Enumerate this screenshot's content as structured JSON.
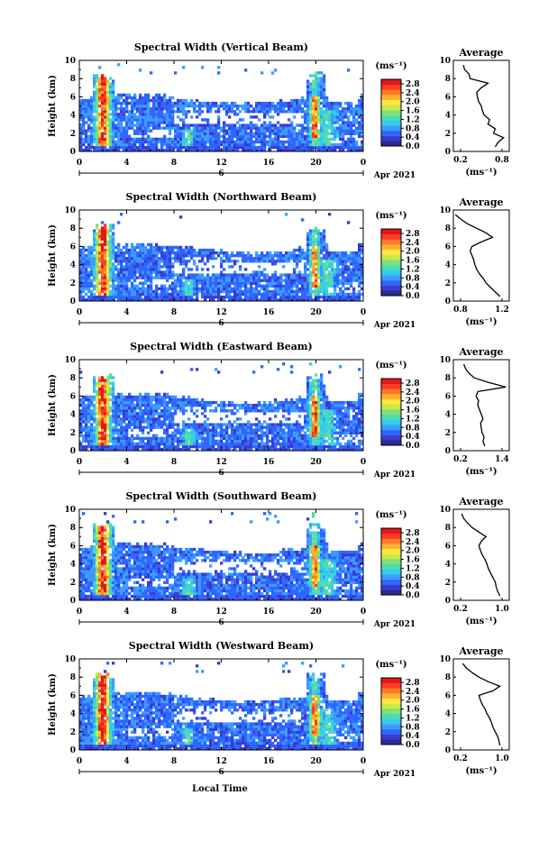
{
  "figure": {
    "xlabel_bottom": "Local Time",
    "date_label": "Apr 2021",
    "day_marker": "6"
  },
  "colorbar": {
    "unit_label": "(ms⁻¹)",
    "tick_labels": [
      "2.8",
      "2.4",
      "2.0",
      "1.6",
      "1.2",
      "0.8",
      "0.4",
      "0.0"
    ],
    "colors": [
      "#2b2b8c",
      "#3b3bd0",
      "#2f66ff",
      "#3d9bff",
      "#33ccee",
      "#4cdcb4",
      "#7fe07a",
      "#c8e848",
      "#ffe640",
      "#ffb030",
      "#ff7a28",
      "#ff3a22",
      "#e01818"
    ]
  },
  "chart_data": [
    {
      "type": "heatmap",
      "title": "Spectral Width (Vertical Beam)",
      "ylabel": "Height (km)",
      "xlim": [
        0,
        24
      ],
      "ylim": [
        0,
        10
      ],
      "x_ticks": [
        "0",
        "4",
        "8",
        "12",
        "16",
        "20",
        "0"
      ],
      "y_ticks": [
        "0",
        "2",
        "4",
        "6",
        "8",
        "10"
      ],
      "zlim": [
        0,
        2.8
      ],
      "average_profile": {
        "title": "Average",
        "xlabel": "(ms⁻¹)",
        "x_ticks": [
          "0.2",
          "0.8"
        ],
        "y_ticks": [
          "0",
          "2",
          "4",
          "6",
          "8",
          "10"
        ],
        "xlim": [
          0.0,
          1.0
        ],
        "height": [
          0.5,
          1.0,
          1.5,
          2.0,
          2.5,
          3.0,
          3.5,
          4.0,
          4.5,
          5.0,
          5.5,
          6.0,
          6.5,
          7.0,
          7.5,
          8.0,
          8.5,
          9.0,
          9.5
        ],
        "value": [
          0.75,
          0.8,
          0.9,
          0.72,
          0.75,
          0.62,
          0.65,
          0.55,
          0.52,
          0.5,
          0.45,
          0.43,
          0.42,
          0.5,
          0.62,
          0.3,
          0.28,
          0.2,
          0.18
        ]
      }
    },
    {
      "type": "heatmap",
      "title": "Spectral Width (Northward Beam)",
      "ylabel": "Height (km)",
      "xlim": [
        0,
        24
      ],
      "ylim": [
        0,
        10
      ],
      "x_ticks": [
        "0",
        "4",
        "8",
        "12",
        "16",
        "20",
        "0"
      ],
      "y_ticks": [
        "0",
        "2",
        "4",
        "6",
        "8",
        "10"
      ],
      "zlim": [
        0,
        2.8
      ],
      "average_profile": {
        "title": "Average",
        "xlabel": "(ms⁻¹)",
        "x_ticks": [
          "0.8",
          "1.2"
        ],
        "y_ticks": [
          "0",
          "2",
          "4",
          "6",
          "8",
          "10"
        ],
        "xlim": [
          0.7,
          1.3
        ],
        "height": [
          0.5,
          1.0,
          1.5,
          2.0,
          2.5,
          3.0,
          3.5,
          4.0,
          4.5,
          5.0,
          5.5,
          6.0,
          6.5,
          7.0,
          7.5,
          8.0,
          8.5,
          9.0,
          9.5
        ],
        "value": [
          1.2,
          1.15,
          1.1,
          1.05,
          1.02,
          0.98,
          0.95,
          0.93,
          0.92,
          0.9,
          0.88,
          0.9,
          1.0,
          1.12,
          1.05,
          0.95,
          0.85,
          0.78,
          0.72
        ]
      }
    },
    {
      "type": "heatmap",
      "title": "Spectral Width (Eastward Beam)",
      "ylabel": "Height (km)",
      "xlim": [
        0,
        24
      ],
      "ylim": [
        0,
        10
      ],
      "x_ticks": [
        "0",
        "4",
        "8",
        "12",
        "16",
        "20",
        "0"
      ],
      "y_ticks": [
        "0",
        "2",
        "4",
        "6",
        "8",
        "10"
      ],
      "zlim": [
        0,
        2.8
      ],
      "average_profile": {
        "title": "Average",
        "xlabel": "(ms⁻¹)",
        "x_ticks": [
          "0.2",
          "1.4"
        ],
        "y_ticks": [
          "0",
          "2",
          "4",
          "6",
          "8",
          "10"
        ],
        "xlim": [
          0.0,
          1.6
        ],
        "height": [
          0.5,
          1.0,
          1.5,
          2.0,
          2.5,
          3.0,
          3.5,
          4.0,
          4.5,
          5.0,
          5.5,
          6.0,
          6.5,
          7.0,
          7.5,
          8.0,
          8.5,
          9.0,
          9.5
        ],
        "value": [
          0.9,
          0.85,
          0.88,
          0.82,
          0.8,
          0.78,
          0.85,
          0.8,
          0.75,
          0.7,
          0.72,
          0.65,
          0.7,
          1.5,
          1.0,
          0.6,
          0.45,
          0.35,
          0.3
        ]
      }
    },
    {
      "type": "heatmap",
      "title": "Spectral Width (Southward Beam)",
      "ylabel": "Height (km)",
      "xlim": [
        0,
        24
      ],
      "ylim": [
        0,
        10
      ],
      "x_ticks": [
        "0",
        "4",
        "8",
        "12",
        "16",
        "20",
        "0"
      ],
      "y_ticks": [
        "0",
        "2",
        "4",
        "6",
        "8",
        "10"
      ],
      "zlim": [
        0,
        2.8
      ],
      "average_profile": {
        "title": "Average",
        "xlabel": "(ms⁻¹)",
        "x_ticks": [
          "0.2",
          "1.0"
        ],
        "y_ticks": [
          "0",
          "2",
          "4",
          "6",
          "8",
          "10"
        ],
        "xlim": [
          0.0,
          1.2
        ],
        "height": [
          0.5,
          1.0,
          1.5,
          2.0,
          2.5,
          3.0,
          3.5,
          4.0,
          4.5,
          5.0,
          5.5,
          6.0,
          6.5,
          7.0,
          7.5,
          8.0,
          8.5,
          9.0,
          9.5
        ],
        "value": [
          1.0,
          0.95,
          0.92,
          0.9,
          0.85,
          0.8,
          0.75,
          0.72,
          0.68,
          0.62,
          0.58,
          0.55,
          0.6,
          0.7,
          0.55,
          0.4,
          0.3,
          0.22,
          0.18
        ]
      }
    },
    {
      "type": "heatmap",
      "title": "Spectral Width (Westward Beam)",
      "ylabel": "Height (km)",
      "xlim": [
        0,
        24
      ],
      "ylim": [
        0,
        10
      ],
      "x_ticks": [
        "0",
        "4",
        "8",
        "12",
        "16",
        "20",
        "0"
      ],
      "y_ticks": [
        "0",
        "2",
        "4",
        "6",
        "8",
        "10"
      ],
      "zlim": [
        0,
        2.8
      ],
      "average_profile": {
        "title": "Average",
        "xlabel": "(ms⁻¹)",
        "x_ticks": [
          "0.2",
          "1.0"
        ],
        "y_ticks": [
          "0",
          "2",
          "4",
          "6",
          "8",
          "10"
        ],
        "xlim": [
          0.0,
          1.2
        ],
        "height": [
          0.5,
          1.0,
          1.5,
          2.0,
          2.5,
          3.0,
          3.5,
          4.0,
          4.5,
          5.0,
          5.5,
          6.0,
          6.5,
          7.0,
          7.5,
          8.0,
          8.5,
          9.0,
          9.5
        ],
        "value": [
          1.0,
          0.98,
          0.95,
          0.9,
          0.85,
          0.82,
          0.78,
          0.72,
          0.68,
          0.62,
          0.58,
          0.55,
          0.85,
          1.0,
          0.75,
          0.55,
          0.4,
          0.28,
          0.2
        ]
      }
    }
  ]
}
